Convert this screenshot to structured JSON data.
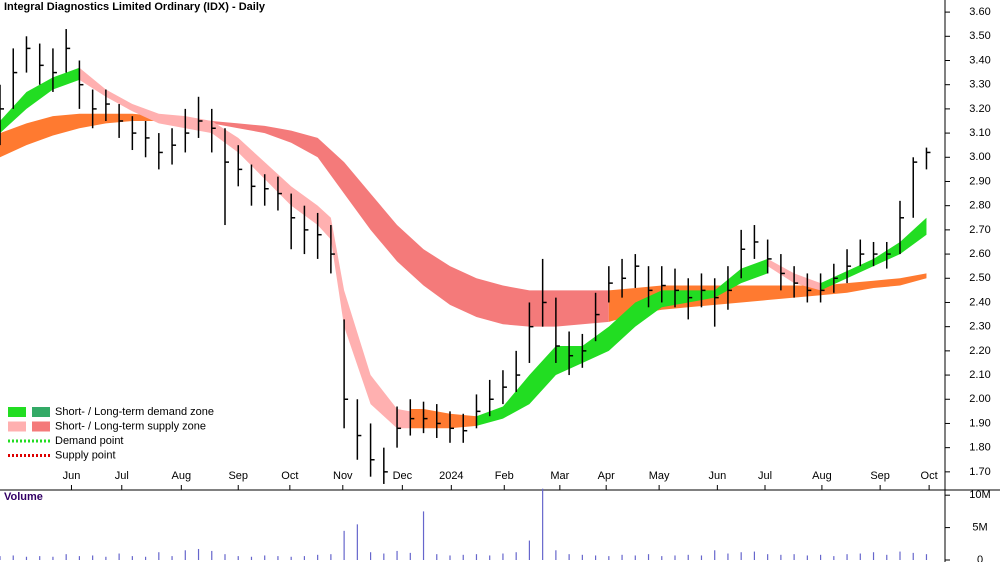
{
  "chart_data": [
    {
      "type": "ohlc",
      "title": "Integral Diagnostics Limited Ordinary (IDX) - Daily",
      "x": [
        0,
        1,
        2,
        3,
        4,
        5,
        6,
        7,
        8,
        9,
        10,
        11,
        12,
        13,
        14,
        15,
        16,
        17,
        18,
        19,
        20,
        21,
        22,
        23,
        24,
        25,
        26,
        27,
        28,
        29,
        30,
        31,
        32,
        33,
        34,
        35,
        36,
        37,
        38,
        39,
        40,
        41,
        42,
        43,
        44,
        45,
        46,
        47,
        48,
        49,
        50,
        51,
        52,
        53,
        54,
        55,
        56,
        57,
        58,
        59,
        60,
        61,
        62,
        63,
        64,
        65,
        66,
        67,
        68,
        69,
        70
      ],
      "close": [
        3.2,
        3.35,
        3.45,
        3.38,
        3.35,
        3.45,
        3.3,
        3.2,
        3.22,
        3.15,
        3.1,
        3.08,
        3.02,
        3.05,
        3.1,
        3.15,
        3.12,
        2.98,
        2.95,
        2.88,
        2.87,
        2.85,
        2.75,
        2.7,
        2.68,
        2.6,
        2.0,
        1.85,
        1.75,
        1.7,
        1.88,
        1.92,
        1.92,
        1.9,
        1.88,
        1.87,
        1.95,
        2.0,
        2.05,
        2.1,
        2.3,
        2.4,
        2.22,
        2.18,
        2.2,
        2.35,
        2.48,
        2.5,
        2.55,
        2.45,
        2.47,
        2.45,
        2.42,
        2.45,
        2.42,
        2.45,
        2.62,
        2.65,
        2.58,
        2.52,
        2.48,
        2.45,
        2.45,
        2.5,
        2.55,
        2.6,
        2.6,
        2.6,
        2.75,
        2.98,
        3.02
      ],
      "high": [
        3.3,
        3.45,
        3.5,
        3.47,
        3.45,
        3.53,
        3.4,
        3.28,
        3.28,
        3.22,
        3.17,
        3.15,
        3.1,
        3.12,
        3.2,
        3.25,
        3.2,
        3.12,
        3.05,
        2.97,
        2.93,
        2.92,
        2.85,
        2.8,
        2.77,
        2.72,
        2.33,
        2.0,
        1.9,
        1.8,
        1.97,
        2.0,
        1.99,
        1.98,
        1.95,
        1.94,
        2.02,
        2.08,
        2.12,
        2.2,
        2.4,
        2.58,
        2.42,
        2.28,
        2.27,
        2.44,
        2.55,
        2.58,
        2.6,
        2.55,
        2.55,
        2.54,
        2.5,
        2.52,
        2.5,
        2.55,
        2.7,
        2.72,
        2.66,
        2.6,
        2.55,
        2.52,
        2.52,
        2.56,
        2.62,
        2.66,
        2.65,
        2.65,
        2.82,
        3.0,
        3.04
      ],
      "low": [
        3.05,
        3.2,
        3.35,
        3.3,
        3.27,
        3.35,
        3.2,
        3.12,
        3.15,
        3.08,
        3.03,
        3.0,
        2.95,
        2.97,
        3.02,
        3.08,
        3.02,
        2.72,
        2.88,
        2.8,
        2.8,
        2.78,
        2.62,
        2.6,
        2.58,
        2.52,
        1.88,
        1.75,
        1.68,
        1.65,
        1.8,
        1.85,
        1.86,
        1.84,
        1.82,
        1.82,
        1.88,
        1.93,
        1.98,
        2.03,
        2.15,
        2.3,
        2.15,
        2.1,
        2.13,
        2.24,
        2.4,
        2.42,
        2.46,
        2.38,
        2.4,
        2.38,
        2.33,
        2.38,
        2.3,
        2.37,
        2.5,
        2.58,
        2.52,
        2.45,
        2.42,
        2.4,
        2.4,
        2.44,
        2.48,
        2.55,
        2.55,
        2.54,
        2.6,
        2.75,
        2.95
      ],
      "color": "#000000",
      "zones": [
        {
          "color": "#ff7a30",
          "x": [
            0,
            2,
            4,
            6,
            8,
            10,
            12,
            14,
            16
          ],
          "lower": [
            3.0,
            3.05,
            3.09,
            3.12,
            3.14,
            3.15,
            3.15,
            3.15,
            3.14
          ],
          "upper": [
            3.1,
            3.14,
            3.17,
            3.18,
            3.18,
            3.18,
            3.17,
            3.16,
            3.15
          ]
        },
        {
          "color": "#f47a7a",
          "x": [
            16,
            18,
            20,
            22,
            24,
            26,
            28,
            30,
            32,
            34,
            36,
            38,
            40,
            42,
            44,
            46
          ],
          "lower": [
            3.14,
            3.12,
            3.1,
            3.06,
            3.0,
            2.85,
            2.7,
            2.57,
            2.47,
            2.39,
            2.34,
            2.31,
            2.3,
            2.3,
            2.31,
            2.32
          ],
          "upper": [
            3.15,
            3.14,
            3.13,
            3.11,
            3.08,
            2.98,
            2.85,
            2.72,
            2.62,
            2.55,
            2.5,
            2.47,
            2.45,
            2.45,
            2.45,
            2.45
          ]
        },
        {
          "color": "#ff7a30",
          "x": [
            46,
            48,
            50,
            52,
            54,
            56,
            58,
            60,
            62,
            64,
            66,
            68,
            70
          ],
          "lower": [
            2.32,
            2.35,
            2.37,
            2.38,
            2.39,
            2.4,
            2.41,
            2.42,
            2.43,
            2.44,
            2.46,
            2.47,
            2.5
          ],
          "upper": [
            2.45,
            2.46,
            2.47,
            2.47,
            2.47,
            2.47,
            2.47,
            2.47,
            2.47,
            2.48,
            2.49,
            2.5,
            2.52
          ]
        },
        {
          "color": "#22dd22",
          "x": [
            0,
            2,
            4,
            6
          ],
          "lower": [
            3.1,
            3.2,
            3.28,
            3.32
          ],
          "upper": [
            3.15,
            3.27,
            3.33,
            3.37
          ]
        },
        {
          "color": "#ffb0b0",
          "x": [
            6,
            8,
            10,
            12,
            14,
            16,
            18,
            20,
            22,
            24,
            25,
            26,
            28,
            30,
            31
          ],
          "lower": [
            3.32,
            3.25,
            3.19,
            3.14,
            3.12,
            3.1,
            3.02,
            2.91,
            2.8,
            2.72,
            2.66,
            2.3,
            1.98,
            1.88,
            1.88
          ],
          "upper": [
            3.37,
            3.28,
            3.22,
            3.18,
            3.17,
            3.15,
            3.08,
            2.98,
            2.88,
            2.8,
            2.75,
            2.45,
            2.1,
            1.96,
            1.95
          ]
        },
        {
          "color": "#ff7a30",
          "x": [
            31,
            32,
            34,
            36
          ],
          "lower": [
            1.88,
            1.88,
            1.88,
            1.89
          ],
          "upper": [
            1.96,
            1.96,
            1.94,
            1.93
          ]
        },
        {
          "color": "#22dd22",
          "x": [
            36,
            38,
            40,
            42,
            44,
            46,
            48,
            50,
            52,
            54,
            56,
            58
          ],
          "lower": [
            1.89,
            1.92,
            1.98,
            2.1,
            2.15,
            2.2,
            2.3,
            2.38,
            2.4,
            2.42,
            2.48,
            2.52
          ],
          "upper": [
            1.93,
            1.97,
            2.1,
            2.22,
            2.22,
            2.3,
            2.4,
            2.45,
            2.45,
            2.45,
            2.54,
            2.58
          ]
        },
        {
          "color": "#ffb0b0",
          "x": [
            58,
            60,
            62
          ],
          "lower": [
            2.55,
            2.48,
            2.45
          ],
          "upper": [
            2.58,
            2.52,
            2.48
          ]
        },
        {
          "color": "#22dd22",
          "x": [
            62,
            64,
            66,
            68,
            70
          ],
          "lower": [
            2.45,
            2.5,
            2.55,
            2.6,
            2.68
          ],
          "upper": [
            2.48,
            2.53,
            2.58,
            2.65,
            2.75
          ]
        }
      ],
      "legend": [
        {
          "label": "Short- / Long-term demand zone",
          "colors": [
            "#22dd22",
            "#33aa66"
          ]
        },
        {
          "label": "Short- / Long-term supply zone",
          "colors": [
            "#ffb0b0",
            "#f47a7a"
          ]
        },
        {
          "label": "Demand point",
          "colors": [
            "#22dd22"
          ]
        },
        {
          "label": "Supply point",
          "colors": [
            "#dd0000"
          ]
        }
      ],
      "xlim": [
        0,
        71.4
      ],
      "xticks": [
        {
          "value": 5.4,
          "label": "Jun"
        },
        {
          "value": 9.2,
          "label": "Jul"
        },
        {
          "value": 13.7,
          "label": "Aug"
        },
        {
          "value": 18,
          "label": "Sep"
        },
        {
          "value": 21.9,
          "label": "Oct"
        },
        {
          "value": 25.9,
          "label": "Nov"
        },
        {
          "value": 30.4,
          "label": "Dec"
        },
        {
          "value": 34.1,
          "label": "2024"
        },
        {
          "value": 38.1,
          "label": "Feb"
        },
        {
          "value": 42.3,
          "label": "Mar"
        },
        {
          "value": 45.8,
          "label": "Apr"
        },
        {
          "value": 49.8,
          "label": "May"
        },
        {
          "value": 54.2,
          "label": "Jun"
        },
        {
          "value": 57.8,
          "label": "Jul"
        },
        {
          "value": 62.1,
          "label": "Aug"
        },
        {
          "value": 66.5,
          "label": "Sep"
        },
        {
          "value": 70.2,
          "label": "Oct"
        }
      ],
      "ylim": [
        1.625,
        3.65
      ],
      "yticks": [
        {
          "value": 3.6,
          "label": "3.60"
        },
        {
          "value": 3.5,
          "label": "3.50"
        },
        {
          "value": 3.4,
          "label": "3.40"
        },
        {
          "value": 3.3,
          "label": "3.30"
        },
        {
          "value": 3.2,
          "label": "3.20"
        },
        {
          "value": 3.1,
          "label": "3.10"
        },
        {
          "value": 3.0,
          "label": "3.00"
        },
        {
          "value": 2.9,
          "label": "2.90"
        },
        {
          "value": 2.8,
          "label": "2.80"
        },
        {
          "value": 2.7,
          "label": "2.70"
        },
        {
          "value": 2.6,
          "label": "2.60"
        },
        {
          "value": 2.5,
          "label": "2.50"
        },
        {
          "value": 2.4,
          "label": "2.40"
        },
        {
          "value": 2.3,
          "label": "2.30"
        },
        {
          "value": 2.2,
          "label": "2.20"
        },
        {
          "value": 2.1,
          "label": "2.10"
        },
        {
          "value": 2.0,
          "label": "2.00"
        },
        {
          "value": 1.9,
          "label": "1.90"
        },
        {
          "value": 1.8,
          "label": "1.80"
        },
        {
          "value": 1.7,
          "label": "1.70"
        }
      ]
    },
    {
      "type": "bar",
      "title": "Volume",
      "color": "#6666cc",
      "x": [
        0,
        1,
        2,
        3,
        4,
        5,
        6,
        7,
        8,
        9,
        10,
        11,
        12,
        13,
        14,
        15,
        16,
        17,
        18,
        19,
        20,
        21,
        22,
        23,
        24,
        25,
        26,
        27,
        28,
        29,
        30,
        31,
        32,
        33,
        34,
        35,
        36,
        37,
        38,
        39,
        40,
        41,
        42,
        43,
        44,
        45,
        46,
        47,
        48,
        49,
        50,
        51,
        52,
        53,
        54,
        55,
        56,
        57,
        58,
        59,
        60,
        61,
        62,
        63,
        64,
        65,
        66,
        67,
        68,
        69,
        70
      ],
      "values": [
        600000,
        700000,
        500000,
        600000,
        500000,
        900000,
        600000,
        700000,
        500000,
        1000000,
        600000,
        500000,
        1200000,
        600000,
        1500000,
        1700000,
        1400000,
        900000,
        600000,
        500000,
        700000,
        600000,
        500000,
        600000,
        800000,
        900000,
        4500000,
        5500000,
        1200000,
        1000000,
        1400000,
        1100000,
        7500000,
        900000,
        700000,
        800000,
        900000,
        700000,
        1000000,
        1200000,
        3000000,
        11000000,
        1500000,
        900000,
        800000,
        700000,
        600000,
        800000,
        700000,
        900000,
        600000,
        700000,
        800000,
        700000,
        1500000,
        1000000,
        1200000,
        1300000,
        900000,
        800000,
        900000,
        700000,
        800000,
        600000,
        900000,
        1000000,
        1200000,
        800000,
        1300000,
        1100000,
        900000
      ],
      "ylim": [
        0,
        10800000
      ],
      "yticks": [
        {
          "value": 10000000,
          "label": "10M"
        },
        {
          "value": 5000000,
          "label": "5M"
        },
        0
      ]
    }
  ]
}
